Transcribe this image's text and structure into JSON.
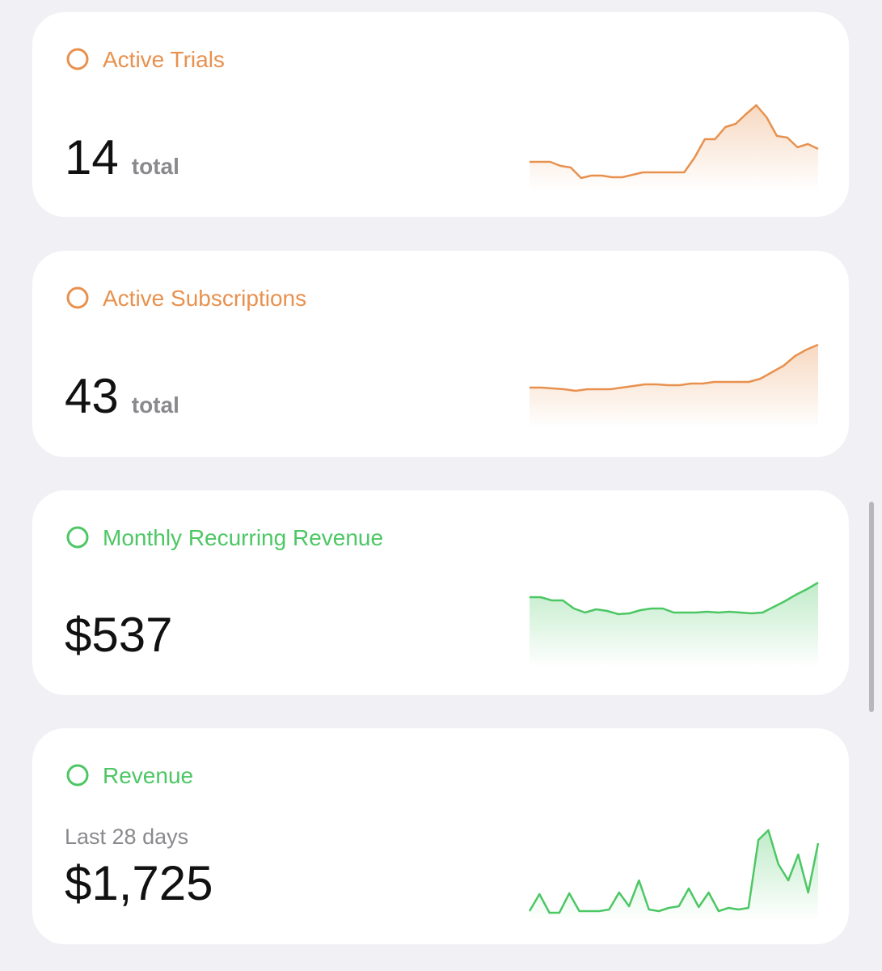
{
  "cards": [
    {
      "title": "Active Trials",
      "color": "#e8914f",
      "value": "14",
      "unit": "total",
      "sparkline": {
        "type": "line",
        "values": [
          25,
          25,
          25,
          20,
          18,
          5,
          8,
          8,
          6,
          6,
          9,
          12,
          12,
          12,
          12,
          12,
          30,
          53,
          53,
          68,
          72,
          84,
          95,
          80,
          57,
          55,
          43,
          47,
          41
        ]
      }
    },
    {
      "title": "Active Subscriptions",
      "color": "#e8914f",
      "value": "43",
      "unit": "total",
      "sparkline": {
        "type": "line",
        "values": [
          41,
          41,
          40,
          39,
          37,
          39,
          39,
          39,
          41,
          43,
          45,
          45,
          44,
          44,
          46,
          46,
          48,
          48,
          48,
          48,
          52,
          60,
          68,
          80,
          88,
          94
        ]
      }
    },
    {
      "title": "Monthly Recurring Revenue",
      "color": "#4cc764",
      "value": "$537",
      "sparkline": {
        "type": "line",
        "values": [
          77,
          77,
          73,
          73,
          63,
          58,
          62,
          60,
          56,
          57,
          61,
          63,
          63,
          58,
          58,
          58,
          59,
          58,
          59,
          58,
          57,
          58,
          65,
          72,
          80,
          87,
          95
        ]
      }
    },
    {
      "title": "Revenue",
      "color": "#4cc764",
      "subtitle": "Last 28 days",
      "value": "$1,725",
      "sparkline": {
        "type": "line",
        "values": [
          2,
          23,
          0,
          0,
          24,
          2,
          2,
          2,
          4,
          25,
          8,
          40,
          4,
          2,
          6,
          8,
          30,
          7,
          25,
          2,
          6,
          4,
          6,
          90,
          102,
          60,
          40,
          72,
          25,
          86
        ]
      }
    }
  ]
}
